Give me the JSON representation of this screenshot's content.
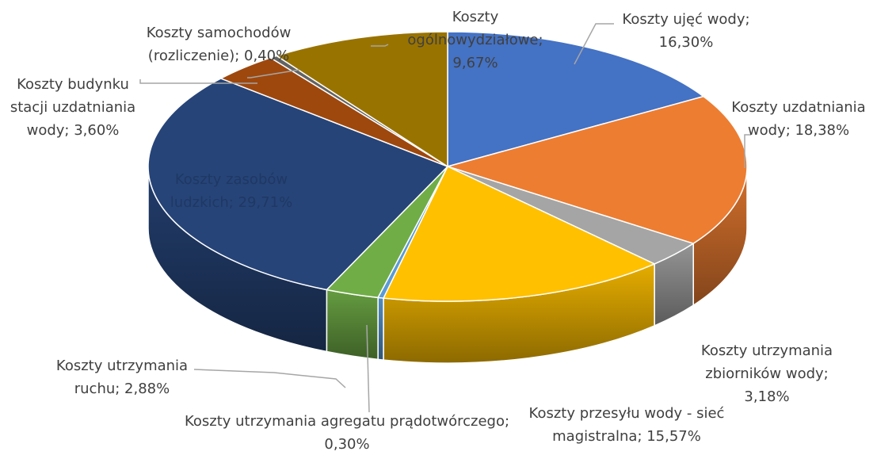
{
  "chart_data": {
    "type": "pie",
    "title": "",
    "style": "3d",
    "slices": [
      {
        "label": "Koszty ujęć wody; 16,30%",
        "value": 16.3,
        "color": "#4472c4"
      },
      {
        "label": "Koszty uzdatniania wody; 18,38%",
        "value": 18.38,
        "color": "#ed7d31"
      },
      {
        "label": "Koszty utrzymania zbiorników wody; 3,18%",
        "value": 3.18,
        "color": "#a5a5a5"
      },
      {
        "label": "Koszty przesyłu wody - sieć magistralna; 15,57%",
        "value": 15.57,
        "color": "#ffc000"
      },
      {
        "label": "Koszty utrzymania agregatu prądotwórczego; 0,30%",
        "value": 0.3,
        "color": "#5b9bd5"
      },
      {
        "label": "Koszty utrzymania ruchu; 2,88%",
        "value": 2.88,
        "color": "#70ad47"
      },
      {
        "label": "Koszty zasobów ludzkich; 29,71%",
        "value": 29.71,
        "color": "#264478"
      },
      {
        "label": "Koszty budynku stacji uzdatniania wody; 3,60%",
        "value": 3.6,
        "color": "#9e480e"
      },
      {
        "label": "Koszty samochodów (rozliczenie); 0,40%",
        "value": 0.4,
        "color": "#636363"
      },
      {
        "label": "Koszty ogólnowydziałowe; 9,67%",
        "value": 9.67,
        "color": "#997300"
      }
    ]
  },
  "labels": [
    {
      "lines": [
        "Koszty ujęć wody;",
        "16,30%"
      ]
    },
    {
      "lines": [
        "Koszty uzdatniania",
        "wody; 18,38%"
      ]
    },
    {
      "lines": [
        "Koszty utrzymania",
        "zbiorników wody;",
        "3,18%"
      ]
    },
    {
      "lines": [
        "Koszty przesyłu wody - sieć",
        "magistralna; 15,57%"
      ]
    },
    {
      "lines": [
        "Koszty utrzymania agregatu prądotwórczego;",
        "0,30%"
      ]
    },
    {
      "lines": [
        "Koszty utrzymania",
        "ruchu; 2,88%"
      ]
    },
    {
      "lines": [
        "Koszty zasobów",
        "ludzkich; 29,71%"
      ]
    },
    {
      "lines": [
        "Koszty budynku",
        "stacji uzdatniania",
        "wody; 3,60%"
      ]
    },
    {
      "lines": [
        "Koszty samochodów",
        "(rozliczenie); 0,40%"
      ]
    },
    {
      "lines": [
        "Koszty",
        "ogólnowydziałowe;",
        "9,67%"
      ]
    }
  ]
}
